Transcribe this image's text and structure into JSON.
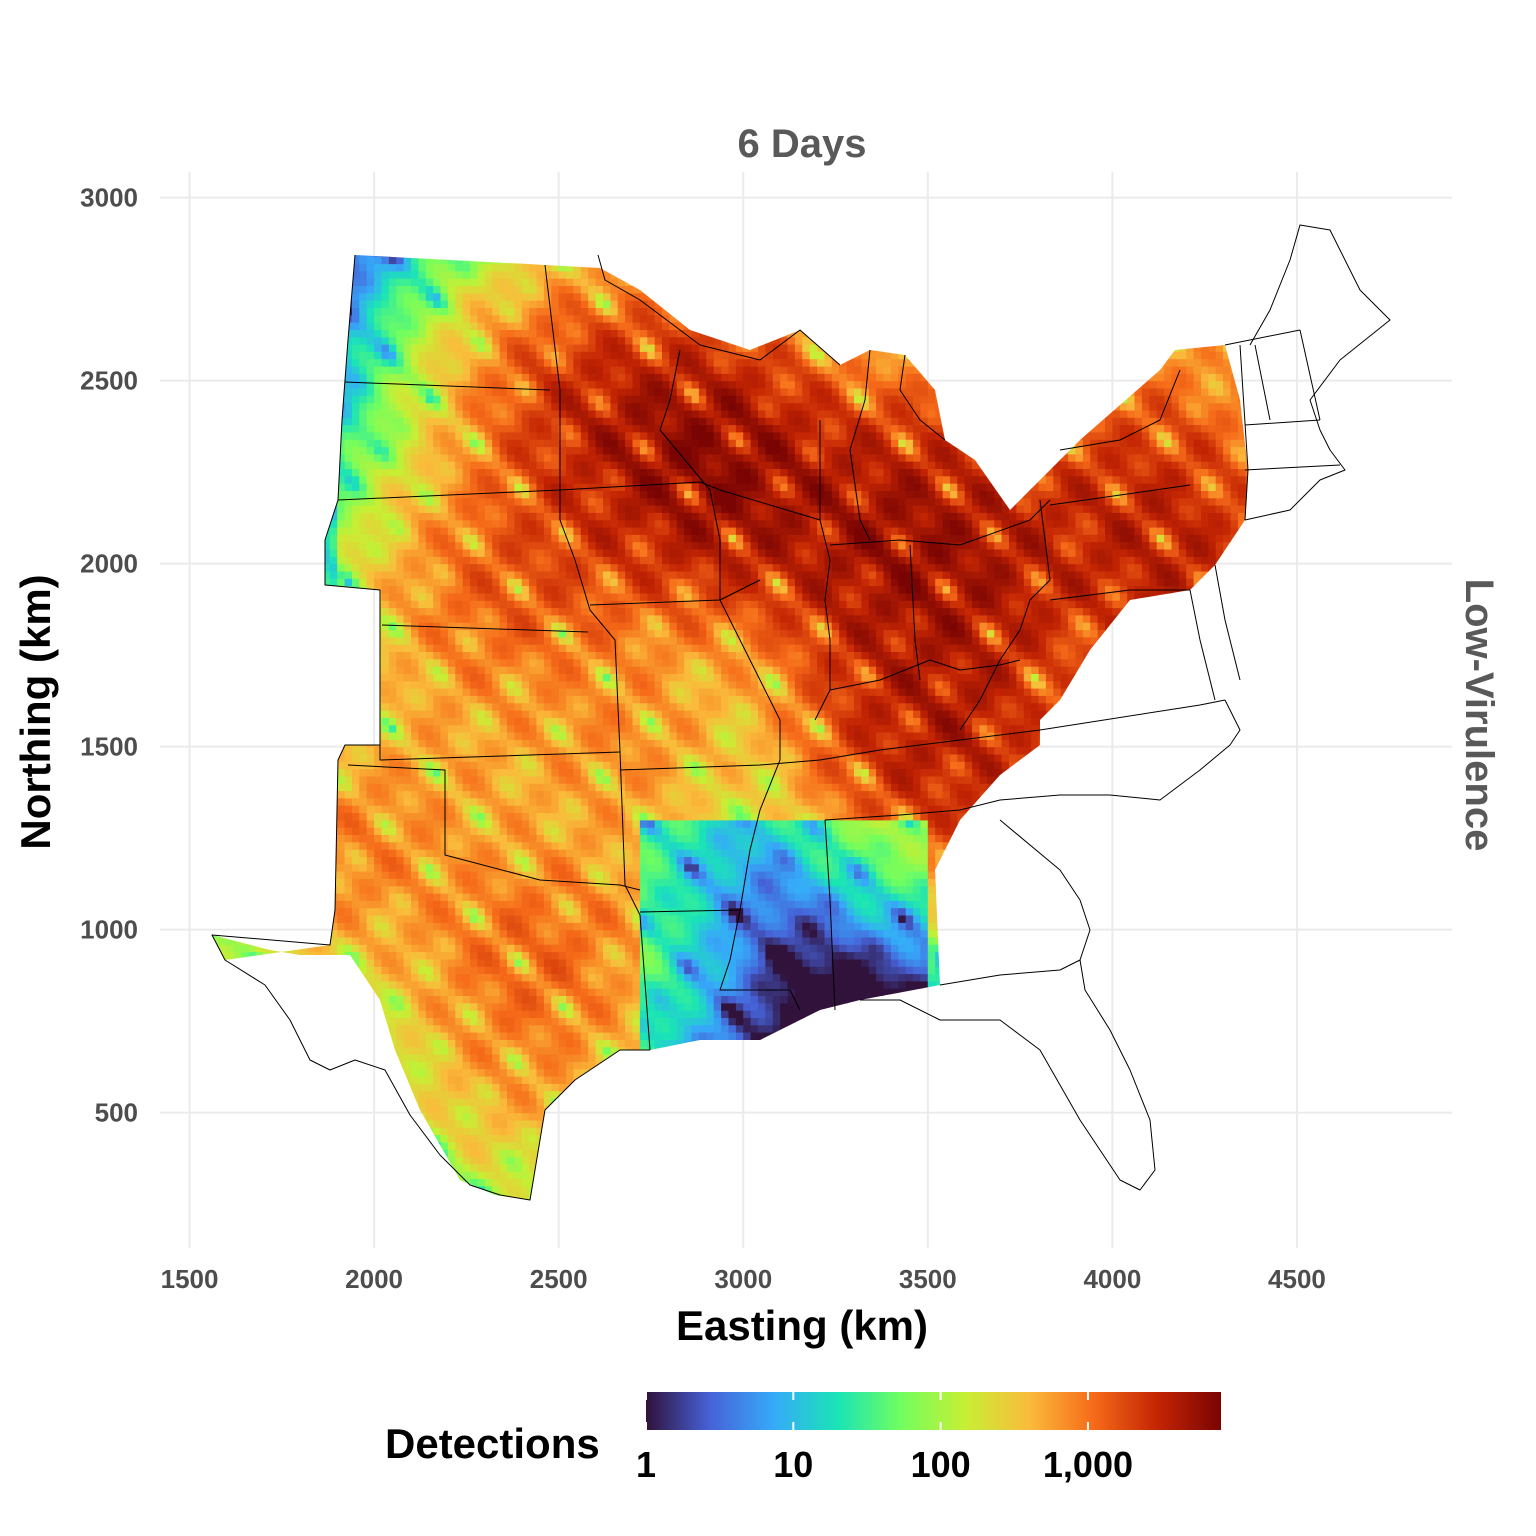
{
  "chart_data": {
    "type": "heatmap",
    "title": "6 Days",
    "facet_label": "Low-Virulence",
    "xlabel": "Easting (km)",
    "ylabel": "Northing (km)",
    "xlim": [
      1420,
      4920
    ],
    "ylim": [
      130,
      3070
    ],
    "x_ticks": [
      1500,
      2000,
      2500,
      3000,
      3500,
      4000,
      4500
    ],
    "y_ticks": [
      500,
      1000,
      1500,
      2000,
      2500,
      3000
    ],
    "x_tick_labels": [
      "1500",
      "2000",
      "2500",
      "3000",
      "3500",
      "4000",
      "4500"
    ],
    "y_tick_labels": [
      "500",
      "1000",
      "1500",
      "2000",
      "2500",
      "3000"
    ],
    "grid": true,
    "legend": {
      "title": "Detections",
      "position": "bottom",
      "scale": "log10",
      "range": [
        1,
        8000
      ],
      "tick_values": [
        1,
        10,
        100,
        1000
      ],
      "tick_labels": [
        "1",
        "10",
        "100",
        "1,000"
      ],
      "colors": [
        "#30123b",
        "#4662d7",
        "#36aaf9",
        "#1ae4b6",
        "#72fe5e",
        "#c7ef34",
        "#fabb3b",
        "#f66b19",
        "#c42503",
        "#7a0403"
      ]
    },
    "detections_peaks": [
      {
        "x": 2950,
        "y": 2200,
        "detections": 3000
      },
      {
        "x": 2900,
        "y": 2320,
        "detections": 2500
      },
      {
        "x": 2630,
        "y": 2410,
        "detections": 1500
      },
      {
        "x": 2530,
        "y": 2450,
        "detections": 800
      },
      {
        "x": 2430,
        "y": 2000,
        "detections": 900
      },
      {
        "x": 2250,
        "y": 1870,
        "detections": 500
      },
      {
        "x": 3360,
        "y": 2010,
        "detections": 2500
      },
      {
        "x": 3400,
        "y": 2190,
        "detections": 1200
      },
      {
        "x": 3580,
        "y": 2270,
        "detections": 700
      },
      {
        "x": 3680,
        "y": 1950,
        "detections": 2000
      },
      {
        "x": 3450,
        "y": 1870,
        "detections": 800
      },
      {
        "x": 4170,
        "y": 1970,
        "detections": 2500
      },
      {
        "x": 4000,
        "y": 2200,
        "detections": 1200
      },
      {
        "x": 4200,
        "y": 2400,
        "detections": 600
      },
      {
        "x": 3460,
        "y": 1560,
        "detections": 1500
      },
      {
        "x": 3680,
        "y": 1440,
        "detections": 1200
      },
      {
        "x": 2680,
        "y": 1500,
        "detections": 600
      },
      {
        "x": 2680,
        "y": 2050,
        "detections": 400
      },
      {
        "x": 1900,
        "y": 1200,
        "detections": 700
      },
      {
        "x": 2350,
        "y": 930,
        "detections": 600
      },
      {
        "x": 2550,
        "y": 950,
        "detections": 500
      },
      {
        "x": 2400,
        "y": 580,
        "detections": 400
      },
      {
        "x": 2200,
        "y": 1450,
        "detections": 300
      },
      {
        "x": 3500,
        "y": 1500,
        "detections": 1000
      }
    ]
  }
}
